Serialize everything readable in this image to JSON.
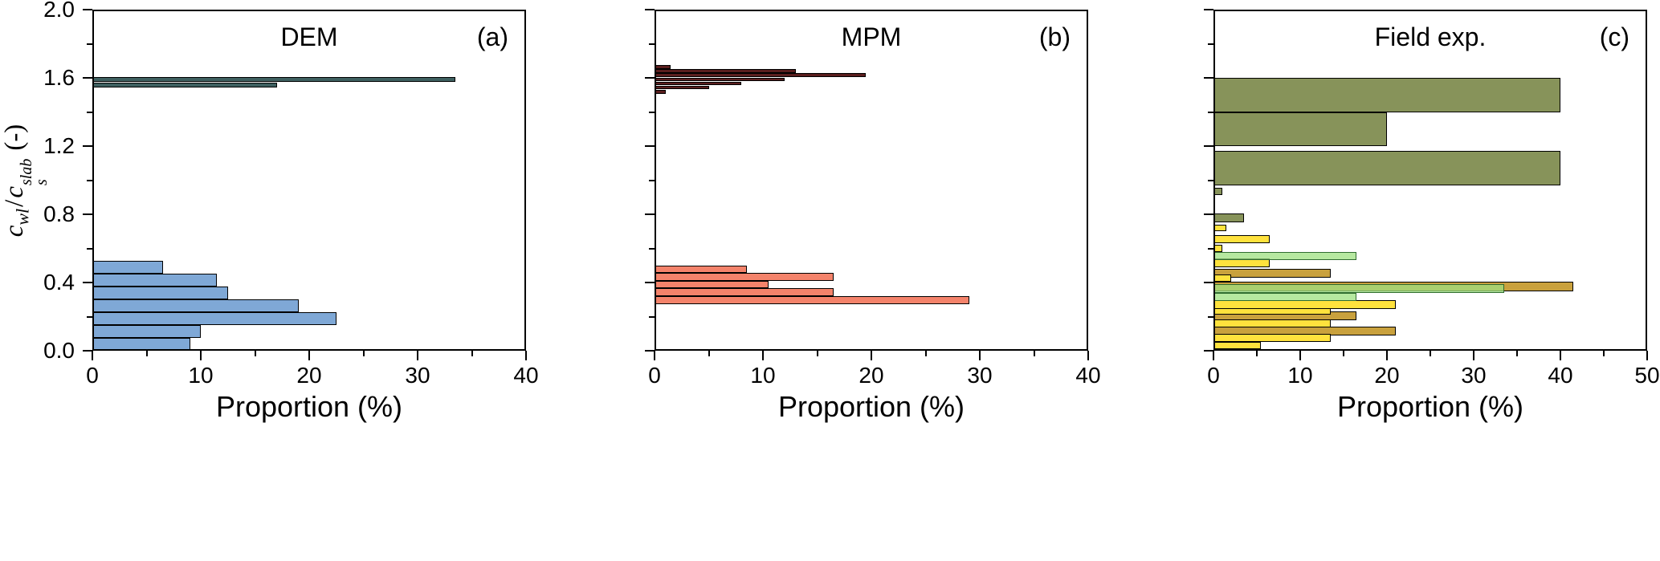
{
  "figure": {
    "background": "#ffffff"
  },
  "chart_data": {
    "type": "bar",
    "orientation": "horizontal",
    "grid": false,
    "legend": "none",
    "yaxis": {
      "min": 0.0,
      "max": 2.0,
      "major_ticks": [
        0.0,
        0.4,
        0.8,
        1.2,
        1.6,
        2.0
      ],
      "major_labels": [
        "0.0",
        "0.4",
        "0.8",
        "1.2",
        "1.6",
        "2.0"
      ],
      "minor_ticks": [
        0.2,
        0.6,
        1.0,
        1.4,
        1.8
      ]
    },
    "yaxis_label": {
      "c1": "c",
      "sub1": "wl",
      "slash": "/",
      "c2": "c",
      "sub2": "s",
      "sup2": "slab",
      "units": "(-)"
    },
    "panels": [
      {
        "title": "DEM",
        "letter": "(a)",
        "xlabel": "Proportion (%)",
        "show_ylabels": true,
        "xaxis": {
          "min": 0,
          "max": 40,
          "major_ticks": [
            0,
            10,
            20,
            30,
            40
          ],
          "minor_ticks": [
            5,
            15,
            25,
            35
          ]
        },
        "series": [
          {
            "name": "dem-upper-cluster",
            "fill": "#3E6060",
            "edge": "#000000",
            "edge_w": 1.2,
            "bars": [
              {
                "y": 1.59,
                "h": 0.028,
                "v": 33.5
              },
              {
                "y": 1.558,
                "h": 0.028,
                "v": 17.0
              }
            ]
          },
          {
            "name": "dem-lower-cluster",
            "fill": "#7FA8D6",
            "edge": "#000000",
            "edge_w": 1.6,
            "bars": [
              {
                "y": 0.0375,
                "h": 0.075,
                "v": 9.0
              },
              {
                "y": 0.1125,
                "h": 0.075,
                "v": 10.0
              },
              {
                "y": 0.1875,
                "h": 0.075,
                "v": 22.5
              },
              {
                "y": 0.2625,
                "h": 0.075,
                "v": 19.0
              },
              {
                "y": 0.3375,
                "h": 0.075,
                "v": 12.5
              },
              {
                "y": 0.4125,
                "h": 0.075,
                "v": 11.5
              },
              {
                "y": 0.4875,
                "h": 0.075,
                "v": 6.5
              }
            ]
          }
        ]
      },
      {
        "title": "MPM",
        "letter": "(b)",
        "xlabel": "Proportion (%)",
        "show_ylabels": false,
        "xaxis": {
          "min": 0,
          "max": 40,
          "major_ticks": [
            0,
            10,
            20,
            30,
            40
          ],
          "minor_ticks": [
            5,
            15,
            25,
            35
          ]
        },
        "series": [
          {
            "name": "mpm-upper-cluster",
            "fill": "#5A1E1E",
            "edge": "#000000",
            "edge_w": 1.2,
            "bars": [
              {
                "y": 1.663,
                "h": 0.022,
                "v": 1.5
              },
              {
                "y": 1.639,
                "h": 0.022,
                "v": 13.0
              },
              {
                "y": 1.615,
                "h": 0.022,
                "v": 19.5
              },
              {
                "y": 1.591,
                "h": 0.022,
                "v": 12.0
              },
              {
                "y": 1.567,
                "h": 0.022,
                "v": 8.0
              },
              {
                "y": 1.543,
                "h": 0.022,
                "v": 5.0
              },
              {
                "y": 1.519,
                "h": 0.022,
                "v": 1.0
              }
            ]
          },
          {
            "name": "mpm-lower-cluster",
            "fill": "#F4836B",
            "edge": "#000000",
            "edge_w": 1.6,
            "bars": [
              {
                "y": 0.2975,
                "h": 0.045,
                "v": 29.0
              },
              {
                "y": 0.3425,
                "h": 0.045,
                "v": 16.5
              },
              {
                "y": 0.3875,
                "h": 0.045,
                "v": 10.5
              },
              {
                "y": 0.4325,
                "h": 0.045,
                "v": 16.5
              },
              {
                "y": 0.4775,
                "h": 0.045,
                "v": 8.5
              }
            ]
          }
        ]
      },
      {
        "title": "Field exp.",
        "letter": "(c)",
        "xlabel": "Proportion (%)",
        "show_ylabels": false,
        "xaxis": {
          "min": 0,
          "max": 50,
          "major_ticks": [
            0,
            10,
            20,
            30,
            40,
            50
          ],
          "minor_ticks": [
            5,
            15,
            25,
            35,
            45
          ]
        },
        "series": [
          {
            "name": "field-olive",
            "fill": "#87935A",
            "edge": "#000000",
            "edge_w": 1.6,
            "bars": [
              {
                "y": 1.5,
                "h": 0.2,
                "v": 40.0
              },
              {
                "y": 1.3,
                "h": 0.2,
                "v": 20.0
              },
              {
                "y": 1.07,
                "h": 0.2,
                "v": 40.0
              },
              {
                "y": 0.935,
                "h": 0.045,
                "v": 1.0
              },
              {
                "y": 0.78,
                "h": 0.05,
                "v": 3.5
              }
            ]
          },
          {
            "name": "field-tan",
            "fill": "#C9A13D",
            "edge": "#000000",
            "edge_w": 1.6,
            "bars": [
              {
                "y": 0.455,
                "h": 0.05,
                "v": 13.5
              },
              {
                "y": 0.375,
                "h": 0.055,
                "v": 41.5
              },
              {
                "y": 0.205,
                "h": 0.05,
                "v": 16.5
              },
              {
                "y": 0.115,
                "h": 0.05,
                "v": 21.0
              }
            ]
          },
          {
            "name": "field-yellow",
            "fill": "#FFE23D",
            "edge": "#000000",
            "edge_w": 1.6,
            "bars": [
              {
                "y": 0.72,
                "h": 0.04,
                "v": 1.5
              },
              {
                "y": 0.655,
                "h": 0.05,
                "v": 6.5
              },
              {
                "y": 0.6,
                "h": 0.04,
                "v": 1.0
              },
              {
                "y": 0.515,
                "h": 0.05,
                "v": 6.5
              },
              {
                "y": 0.425,
                "h": 0.04,
                "v": 2.0
              },
              {
                "y": 0.27,
                "h": 0.05,
                "v": 21.0
              },
              {
                "y": 0.23,
                "h": 0.04,
                "v": 13.5
              },
              {
                "y": 0.16,
                "h": 0.05,
                "v": 13.5
              },
              {
                "y": 0.075,
                "h": 0.05,
                "v": 13.5
              },
              {
                "y": 0.03,
                "h": 0.04,
                "v": 5.5
              }
            ]
          },
          {
            "name": "field-lightgreen",
            "fill": "rgba(158,224,128,0.75)",
            "edge": "#2F6B2F",
            "edge_w": 1.6,
            "bars": [
              {
                "y": 0.555,
                "h": 0.045,
                "v": 16.5
              },
              {
                "y": 0.365,
                "h": 0.05,
                "v": 33.5
              },
              {
                "y": 0.315,
                "h": 0.045,
                "v": 16.5
              }
            ]
          }
        ]
      }
    ]
  }
}
